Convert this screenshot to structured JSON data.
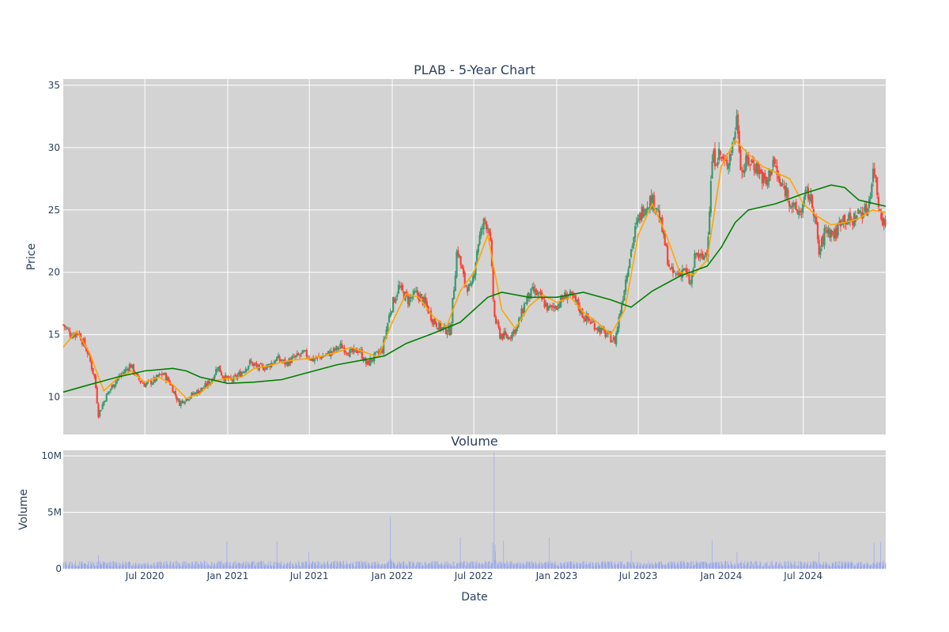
{
  "chart_data": [
    {
      "type": "candlestick",
      "title": "PLAB - 5-Year Chart",
      "xlabel": "",
      "ylabel": "Price",
      "ylim": [
        7,
        35.5
      ],
      "xlim": [
        "2020-01-02",
        "2024-12-31"
      ],
      "y_ticks": [
        10,
        15,
        20,
        25,
        30,
        35
      ],
      "x_tick_labels": [
        "Jul 2020",
        "Jan 2021",
        "Jul 2021",
        "Jan 2022",
        "Jul 2022",
        "Jan 2023",
        "Jul 2023",
        "Jan 2024",
        "Jul 2024"
      ],
      "grid": true,
      "legend": "none",
      "colors": {
        "increasing": "#3D9970",
        "decreasing": "#FF4136",
        "background": "#d3d3d3",
        "ma_short": "#ffa500",
        "ma_long": "#008000"
      },
      "series": [
        {
          "type": "candlestick"
        },
        {
          "type": "line",
          "color": "#ffa500"
        },
        {
          "type": "line",
          "color": "#008000"
        }
      ],
      "close_path": [
        [
          "2020-01-02",
          15.8
        ],
        [
          "2020-01-20",
          15.0
        ],
        [
          "2020-02-05",
          15.2
        ],
        [
          "2020-02-25",
          13.6
        ],
        [
          "2020-03-12",
          11.5
        ],
        [
          "2020-03-20",
          8.6
        ],
        [
          "2020-04-05",
          10.0
        ],
        [
          "2020-04-25",
          11.2
        ],
        [
          "2020-05-15",
          12.0
        ],
        [
          "2020-05-30",
          12.6
        ],
        [
          "2020-06-15",
          11.5
        ],
        [
          "2020-07-01",
          11.0
        ],
        [
          "2020-07-20",
          11.3
        ],
        [
          "2020-08-10",
          11.9
        ],
        [
          "2020-08-25",
          11.2
        ],
        [
          "2020-09-15",
          9.5
        ],
        [
          "2020-10-01",
          9.9
        ],
        [
          "2020-10-20",
          10.3
        ],
        [
          "2020-11-10",
          10.8
        ],
        [
          "2020-11-25",
          11.3
        ],
        [
          "2020-12-10",
          12.5
        ],
        [
          "2020-12-22",
          11.6
        ],
        [
          "2021-01-10",
          11.3
        ],
        [
          "2021-02-01",
          12.0
        ],
        [
          "2021-02-20",
          12.8
        ],
        [
          "2021-03-10",
          12.3
        ],
        [
          "2021-04-01",
          12.5
        ],
        [
          "2021-04-20",
          13.1
        ],
        [
          "2021-05-10",
          12.7
        ],
        [
          "2021-06-01",
          13.2
        ],
        [
          "2021-06-20",
          13.5
        ],
        [
          "2021-07-10",
          13.0
        ],
        [
          "2021-08-01",
          13.3
        ],
        [
          "2021-08-20",
          13.6
        ],
        [
          "2021-09-10",
          14.1
        ],
        [
          "2021-10-01",
          13.5
        ],
        [
          "2021-10-20",
          13.8
        ],
        [
          "2021-11-05",
          12.6
        ],
        [
          "2021-11-25",
          13.3
        ],
        [
          "2021-12-10",
          13.8
        ],
        [
          "2021-12-28",
          17.0
        ],
        [
          "2022-01-15",
          18.8
        ],
        [
          "2022-02-05",
          17.8
        ],
        [
          "2022-02-25",
          18.3
        ],
        [
          "2022-03-15",
          17.5
        ],
        [
          "2022-04-01",
          16.2
        ],
        [
          "2022-04-20",
          15.5
        ],
        [
          "2022-05-10",
          15.3
        ],
        [
          "2022-05-25",
          22.0
        ],
        [
          "2022-06-10",
          19.2
        ],
        [
          "2022-06-25",
          18.5
        ],
        [
          "2022-07-10",
          22.3
        ],
        [
          "2022-07-25",
          24.2
        ],
        [
          "2022-08-05",
          23.5
        ],
        [
          "2022-08-15",
          16.5
        ],
        [
          "2022-08-28",
          15.0
        ],
        [
          "2022-09-15",
          14.8
        ],
        [
          "2022-10-05",
          15.6
        ],
        [
          "2022-10-25",
          17.8
        ],
        [
          "2022-11-10",
          18.5
        ],
        [
          "2022-11-25",
          18.0
        ],
        [
          "2022-12-15",
          17.0
        ],
        [
          "2023-01-05",
          17.5
        ],
        [
          "2023-01-25",
          18.3
        ],
        [
          "2023-02-15",
          17.5
        ],
        [
          "2023-03-01",
          16.5
        ],
        [
          "2023-03-25",
          15.8
        ],
        [
          "2023-04-20",
          15.0
        ],
        [
          "2023-05-10",
          14.5
        ],
        [
          "2023-05-25",
          17.5
        ],
        [
          "2023-06-10",
          21.0
        ],
        [
          "2023-06-25",
          23.5
        ],
        [
          "2023-07-10",
          25.0
        ],
        [
          "2023-07-25",
          25.8
        ],
        [
          "2023-08-10",
          25.5
        ],
        [
          "2023-08-25",
          23.0
        ],
        [
          "2023-09-10",
          20.0
        ],
        [
          "2023-09-25",
          19.8
        ],
        [
          "2023-10-10",
          20.3
        ],
        [
          "2023-10-25",
          19.0
        ],
        [
          "2023-11-05",
          21.5
        ],
        [
          "2023-11-20",
          21.0
        ],
        [
          "2023-12-01",
          22.0
        ],
        [
          "2023-12-12",
          29.0
        ],
        [
          "2023-12-28",
          29.5
        ],
        [
          "2024-01-10",
          28.5
        ],
        [
          "2024-01-25",
          30.0
        ],
        [
          "2024-02-05",
          32.5
        ],
        [
          "2024-02-15",
          28.0
        ],
        [
          "2024-03-01",
          29.0
        ],
        [
          "2024-03-20",
          28.5
        ],
        [
          "2024-04-10",
          27.0
        ],
        [
          "2024-04-25",
          29.0
        ],
        [
          "2024-05-10",
          27.0
        ],
        [
          "2024-05-25",
          26.5
        ],
        [
          "2024-06-10",
          25.0
        ],
        [
          "2024-06-25",
          24.8
        ],
        [
          "2024-07-10",
          26.5
        ],
        [
          "2024-07-25",
          25.0
        ],
        [
          "2024-08-05",
          21.5
        ],
        [
          "2024-08-20",
          23.5
        ],
        [
          "2024-09-10",
          23.0
        ],
        [
          "2024-09-25",
          24.5
        ],
        [
          "2024-10-15",
          24.0
        ],
        [
          "2024-11-01",
          24.8
        ],
        [
          "2024-11-20",
          25.0
        ],
        [
          "2024-12-05",
          28.5
        ],
        [
          "2024-12-15",
          25.5
        ],
        [
          "2024-12-31",
          23.5
        ]
      ],
      "ma_short_path": [
        [
          "2020-01-02",
          14.0
        ],
        [
          "2020-02-01",
          15.3
        ],
        [
          "2020-03-01",
          13.5
        ],
        [
          "2020-04-01",
          10.5
        ],
        [
          "2020-05-01",
          11.5
        ],
        [
          "2020-06-01",
          12.1
        ],
        [
          "2020-07-01",
          11.2
        ],
        [
          "2020-08-01",
          11.6
        ],
        [
          "2020-09-01",
          11.0
        ],
        [
          "2020-10-01",
          9.9
        ],
        [
          "2020-11-01",
          10.3
        ],
        [
          "2020-12-01",
          11.3
        ],
        [
          "2021-01-01",
          11.5
        ],
        [
          "2021-02-01",
          11.6
        ],
        [
          "2021-03-01",
          12.3
        ],
        [
          "2021-04-01",
          12.5
        ],
        [
          "2021-05-01",
          12.8
        ],
        [
          "2021-06-01",
          13.0
        ],
        [
          "2021-07-01",
          13.1
        ],
        [
          "2021-08-01",
          13.3
        ],
        [
          "2021-09-01",
          13.6
        ],
        [
          "2021-10-01",
          14.0
        ],
        [
          "2021-11-01",
          13.6
        ],
        [
          "2021-12-01",
          13.2
        ],
        [
          "2022-01-01",
          16.0
        ],
        [
          "2022-02-01",
          18.3
        ],
        [
          "2022-03-01",
          18.0
        ],
        [
          "2022-04-01",
          16.5
        ],
        [
          "2022-05-01",
          15.6
        ],
        [
          "2022-06-01",
          18.5
        ],
        [
          "2022-07-01",
          20.0
        ],
        [
          "2022-08-01",
          23.0
        ],
        [
          "2022-09-01",
          17.0
        ],
        [
          "2022-10-01",
          15.5
        ],
        [
          "2022-11-01",
          17.3
        ],
        [
          "2022-12-01",
          18.2
        ],
        [
          "2023-01-01",
          17.6
        ],
        [
          "2023-02-01",
          18.0
        ],
        [
          "2023-03-01",
          16.8
        ],
        [
          "2023-04-01",
          16.0
        ],
        [
          "2023-05-01",
          15.0
        ],
        [
          "2023-06-01",
          17.0
        ],
        [
          "2023-07-01",
          23.0
        ],
        [
          "2023-08-01",
          25.5
        ],
        [
          "2023-09-01",
          23.0
        ],
        [
          "2023-10-01",
          20.0
        ],
        [
          "2023-11-01",
          19.8
        ],
        [
          "2023-12-01",
          21.0
        ],
        [
          "2024-01-01",
          28.5
        ],
        [
          "2024-02-01",
          30.6
        ],
        [
          "2024-03-01",
          29.5
        ],
        [
          "2024-04-01",
          28.5
        ],
        [
          "2024-05-01",
          28.0
        ],
        [
          "2024-06-01",
          27.5
        ],
        [
          "2024-07-01",
          25.5
        ],
        [
          "2024-08-01",
          24.5
        ],
        [
          "2024-09-01",
          23.8
        ],
        [
          "2024-10-01",
          24.0
        ],
        [
          "2024-11-01",
          24.3
        ],
        [
          "2024-12-01",
          25.0
        ],
        [
          "2024-12-31",
          24.8
        ]
      ],
      "ma_long_path": [
        [
          "2020-01-02",
          10.4
        ],
        [
          "2020-03-01",
          11.0
        ],
        [
          "2020-05-01",
          11.6
        ],
        [
          "2020-07-01",
          12.1
        ],
        [
          "2020-09-01",
          12.3
        ],
        [
          "2020-10-01",
          12.1
        ],
        [
          "2020-11-01",
          11.6
        ],
        [
          "2021-01-01",
          11.1
        ],
        [
          "2021-03-01",
          11.2
        ],
        [
          "2021-05-01",
          11.4
        ],
        [
          "2021-07-01",
          12.0
        ],
        [
          "2021-09-01",
          12.6
        ],
        [
          "2021-11-01",
          13.0
        ],
        [
          "2021-12-15",
          13.3
        ],
        [
          "2022-02-01",
          14.3
        ],
        [
          "2022-04-01",
          15.1
        ],
        [
          "2022-06-01",
          16.0
        ],
        [
          "2022-08-01",
          18.0
        ],
        [
          "2022-09-01",
          18.4
        ],
        [
          "2022-11-01",
          18.0
        ],
        [
          "2023-01-01",
          18.0
        ],
        [
          "2023-03-01",
          18.4
        ],
        [
          "2023-05-01",
          17.8
        ],
        [
          "2023-06-15",
          17.2
        ],
        [
          "2023-08-01",
          18.5
        ],
        [
          "2023-10-01",
          19.7
        ],
        [
          "2023-12-01",
          20.5
        ],
        [
          "2024-01-01",
          22.0
        ],
        [
          "2024-02-01",
          24.0
        ],
        [
          "2024-03-01",
          25.0
        ],
        [
          "2024-05-01",
          25.5
        ],
        [
          "2024-07-01",
          26.3
        ],
        [
          "2024-09-01",
          27.0
        ],
        [
          "2024-10-01",
          26.8
        ],
        [
          "2024-11-01",
          25.8
        ],
        [
          "2024-12-31",
          25.3
        ]
      ]
    },
    {
      "type": "bar",
      "title": "Volume",
      "xlabel": "Date",
      "ylabel": "Volume",
      "ylim": [
        0,
        10500000
      ],
      "y_ticks": [
        0,
        5000000,
        10000000
      ],
      "y_tick_labels": [
        "0",
        "5M",
        "10M"
      ],
      "x_tick_labels": [
        "Jul 2020",
        "Jan 2021",
        "Jul 2021",
        "Jan 2022",
        "Jul 2022",
        "Jan 2023",
        "Jul 2023",
        "Jan 2024",
        "Jul 2024"
      ],
      "grid": true,
      "colors": {
        "bar": "#9aa6ee",
        "background": "#d3d3d3"
      },
      "baseline_volume": 400000,
      "spikes": [
        [
          "2020-03-20",
          1200000
        ],
        [
          "2020-09-20",
          1400000
        ],
        [
          "2020-12-30",
          2400000
        ],
        [
          "2021-04-20",
          2400000
        ],
        [
          "2021-06-30",
          1500000
        ],
        [
          "2021-12-28",
          4600000
        ],
        [
          "2022-03-20",
          2000000
        ],
        [
          "2022-06-01",
          2800000
        ],
        [
          "2022-06-25",
          2400000
        ],
        [
          "2022-08-15",
          10300000
        ],
        [
          "2022-09-05",
          2500000
        ],
        [
          "2022-12-15",
          2800000
        ],
        [
          "2023-03-25",
          2500000
        ],
        [
          "2023-06-15",
          1600000
        ],
        [
          "2023-12-12",
          2500000
        ],
        [
          "2024-02-05",
          1500000
        ],
        [
          "2024-08-05",
          1500000
        ],
        [
          "2024-12-05",
          2300000
        ],
        [
          "2024-12-20",
          2400000
        ]
      ]
    }
  ]
}
